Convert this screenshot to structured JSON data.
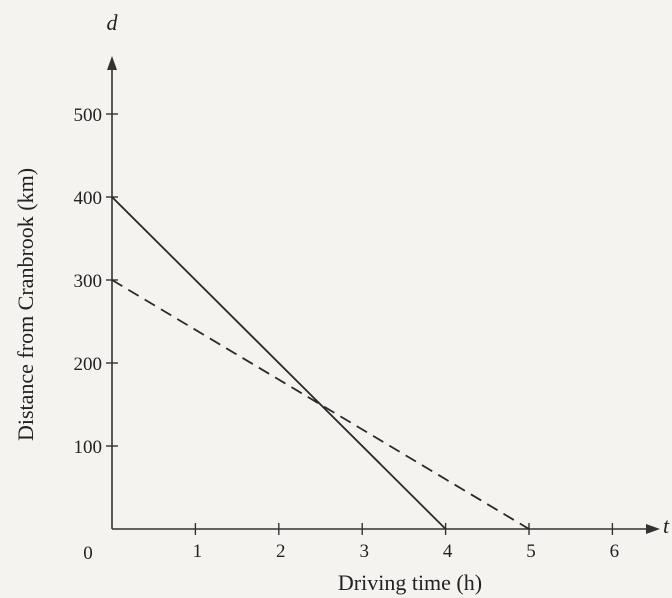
{
  "chart_data": {
    "type": "line",
    "xlabel": "Driving time (h)",
    "ylabel": "Distance from Cranbrook (km)",
    "x_var": "t",
    "y_var": "d",
    "origin_label": "0",
    "xlim": [
      0,
      6.6
    ],
    "ylim": [
      0,
      560
    ],
    "x_ticks": [
      1,
      2,
      3,
      4,
      5,
      6
    ],
    "x_tick_labels": [
      "1",
      "2",
      "3",
      "4",
      "5",
      "6"
    ],
    "y_ticks": [
      100,
      200,
      300,
      400,
      500
    ],
    "y_tick_labels": [
      "100",
      "200",
      "300",
      "400",
      "500"
    ],
    "grid": false,
    "series": [
      {
        "style": "solid",
        "x": [
          0,
          4
        ],
        "y": [
          400,
          0
        ]
      },
      {
        "style": "dashed",
        "x": [
          0,
          5
        ],
        "y": [
          300,
          0
        ]
      }
    ]
  }
}
